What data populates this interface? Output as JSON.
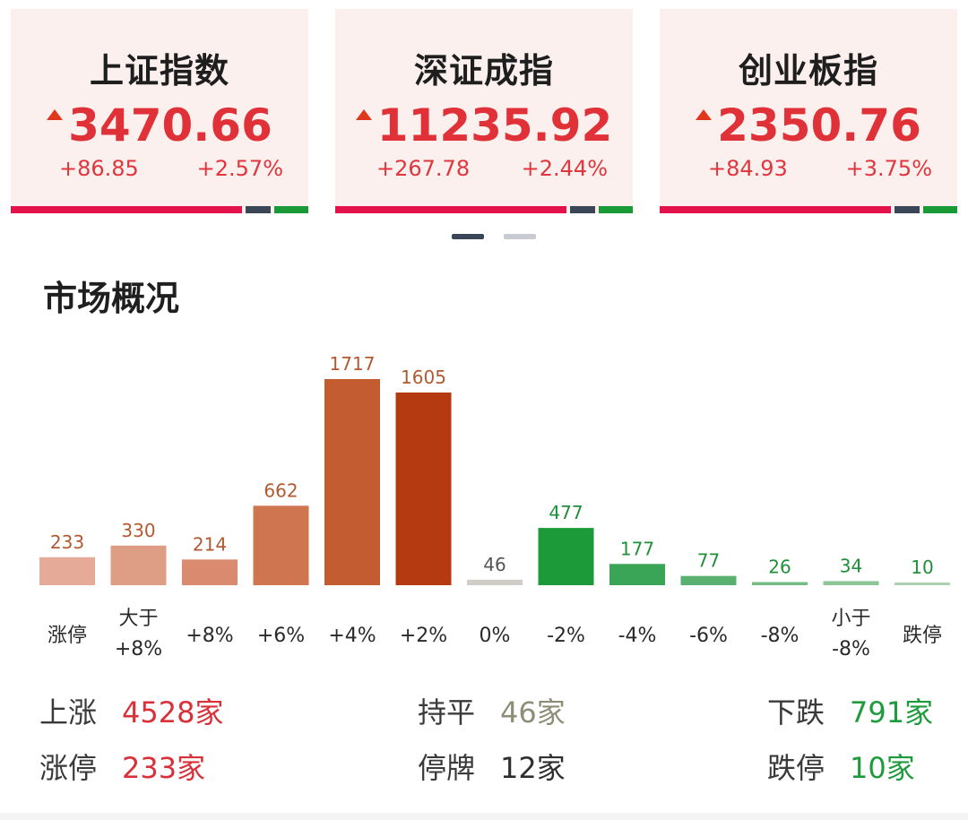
{
  "indices": [
    {
      "name": "上证指数",
      "price": "3470.66",
      "change": "+86.85",
      "pct": "+2.57%"
    },
    {
      "name": "深证成指",
      "price": "11235.92",
      "change": "+267.78",
      "pct": "+2.44%"
    },
    {
      "name": "创业板指",
      "price": "2350.76",
      "change": "+84.93",
      "pct": "+3.75%"
    }
  ],
  "section_title": "市场概况",
  "chart_data": {
    "type": "bar",
    "categories": [
      "涨停",
      "大于\n+8%",
      "+8%",
      "+6%",
      "+4%",
      "+2%",
      "0%",
      "-2%",
      "-4%",
      "-6%",
      "-8%",
      "小于\n-8%",
      "跌停"
    ],
    "values": [
      233,
      330,
      214,
      662,
      1717,
      1605,
      46,
      477,
      177,
      77,
      26,
      34,
      10
    ],
    "colors": [
      "#e5ab98",
      "#de9d85",
      "#d98a6f",
      "#cf7550",
      "#c45c32",
      "#b53a12",
      "#cfcdc6",
      "#1c9a3a",
      "#3aa557",
      "#5ab070",
      "#74bb85",
      "#8cc698",
      "#a9d3b2"
    ],
    "label_colors": [
      "#b25a2f",
      "#b25a2f",
      "#b25a2f",
      "#b25a2f",
      "#b25a2f",
      "#b25a2f",
      "#555555",
      "#1f8f3a",
      "#1f8f3a",
      "#1f8f3a",
      "#1f8f3a",
      "#1f8f3a",
      "#1f8f3a"
    ]
  },
  "stats": {
    "up_label": "上涨",
    "up_val": "4528家",
    "flat_label": "持平",
    "flat_val": "46家",
    "down_label": "下跌",
    "down_val": "791家",
    "limit_up_label": "涨停",
    "limit_up_val": "233家",
    "halt_label": "停牌",
    "halt_val": "12家",
    "limit_down_label": "跌停",
    "limit_down_val": "10家"
  },
  "colors": {
    "up": "#df3137",
    "down": "#1f9a3c",
    "card_bg": "#fbf0ee"
  }
}
